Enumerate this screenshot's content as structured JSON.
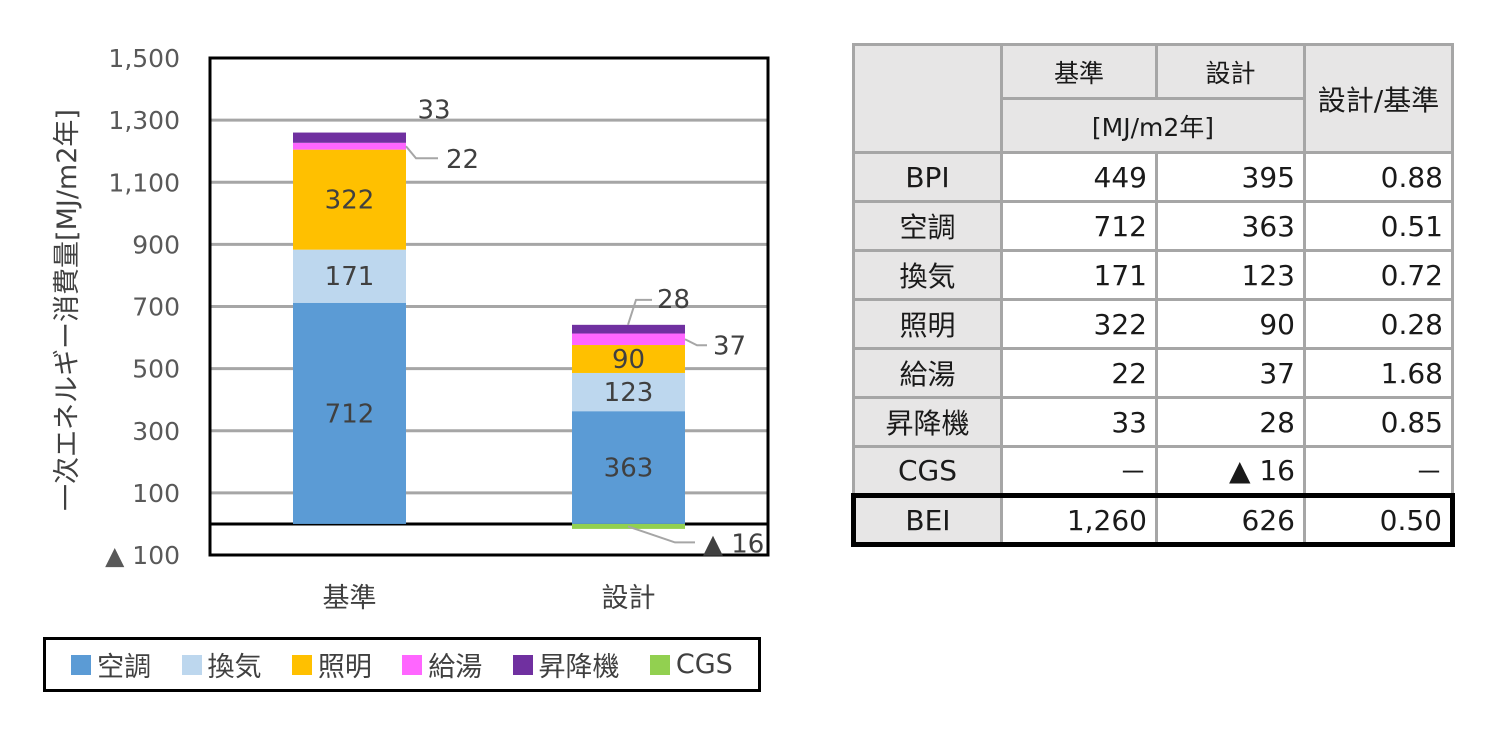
{
  "chart_data": {
    "type": "bar",
    "stacked": true,
    "ylabel": "一次エネルギー消費量[MJ/m2年]",
    "ylim": [
      -100,
      1500
    ],
    "yticks": [
      -100,
      100,
      300,
      500,
      700,
      900,
      1100,
      1300,
      1500
    ],
    "ytick_labels": [
      "▲ 100",
      "100",
      "300",
      "500",
      "700",
      "900",
      "1,100",
      "1,300",
      "1,500"
    ],
    "grid": true,
    "legend_position": "bottom",
    "categories": [
      "基準",
      "設計"
    ],
    "series": [
      {
        "name": "空調",
        "color": "#5b9bd5",
        "values": [
          712,
          363
        ],
        "labels": [
          "712",
          "363"
        ]
      },
      {
        "name": "換気",
        "color": "#bdd7ee",
        "values": [
          171,
          123
        ],
        "labels": [
          "171",
          "123"
        ]
      },
      {
        "name": "照明",
        "color": "#ffc000",
        "values": [
          322,
          90
        ],
        "labels": [
          "322",
          "90"
        ]
      },
      {
        "name": "給湯",
        "color": "#ff66ff",
        "values": [
          22,
          37
        ],
        "labels": [
          "22",
          "37"
        ]
      },
      {
        "name": "昇降機",
        "color": "#7030a0",
        "values": [
          33,
          28
        ],
        "labels": [
          "33",
          "28"
        ]
      },
      {
        "name": "CGS",
        "color": "#92d050",
        "values": [
          0,
          -16
        ],
        "labels": [
          "",
          "▲ 16"
        ]
      }
    ]
  },
  "table": {
    "header": {
      "base": "基準",
      "design": "設計",
      "unit": "[MJ/m2年]",
      "ratio": "設計/基準"
    },
    "rows": [
      {
        "label": "BPI",
        "base": "449",
        "design": "395",
        "ratio": "0.88"
      },
      {
        "label": "空調",
        "base": "712",
        "design": "363",
        "ratio": "0.51"
      },
      {
        "label": "換気",
        "base": "171",
        "design": "123",
        "ratio": "0.72"
      },
      {
        "label": "照明",
        "base": "322",
        "design": "90",
        "ratio": "0.28"
      },
      {
        "label": "給湯",
        "base": "22",
        "design": "37",
        "ratio": "1.68"
      },
      {
        "label": "昇降機",
        "base": "33",
        "design": "28",
        "ratio": "0.85"
      },
      {
        "label": "CGS",
        "base": "－",
        "design": "▲ 16",
        "ratio": "－"
      }
    ],
    "bei": {
      "label": "BEI",
      "base": "1,260",
      "design": "626",
      "ratio": "0.50"
    }
  }
}
